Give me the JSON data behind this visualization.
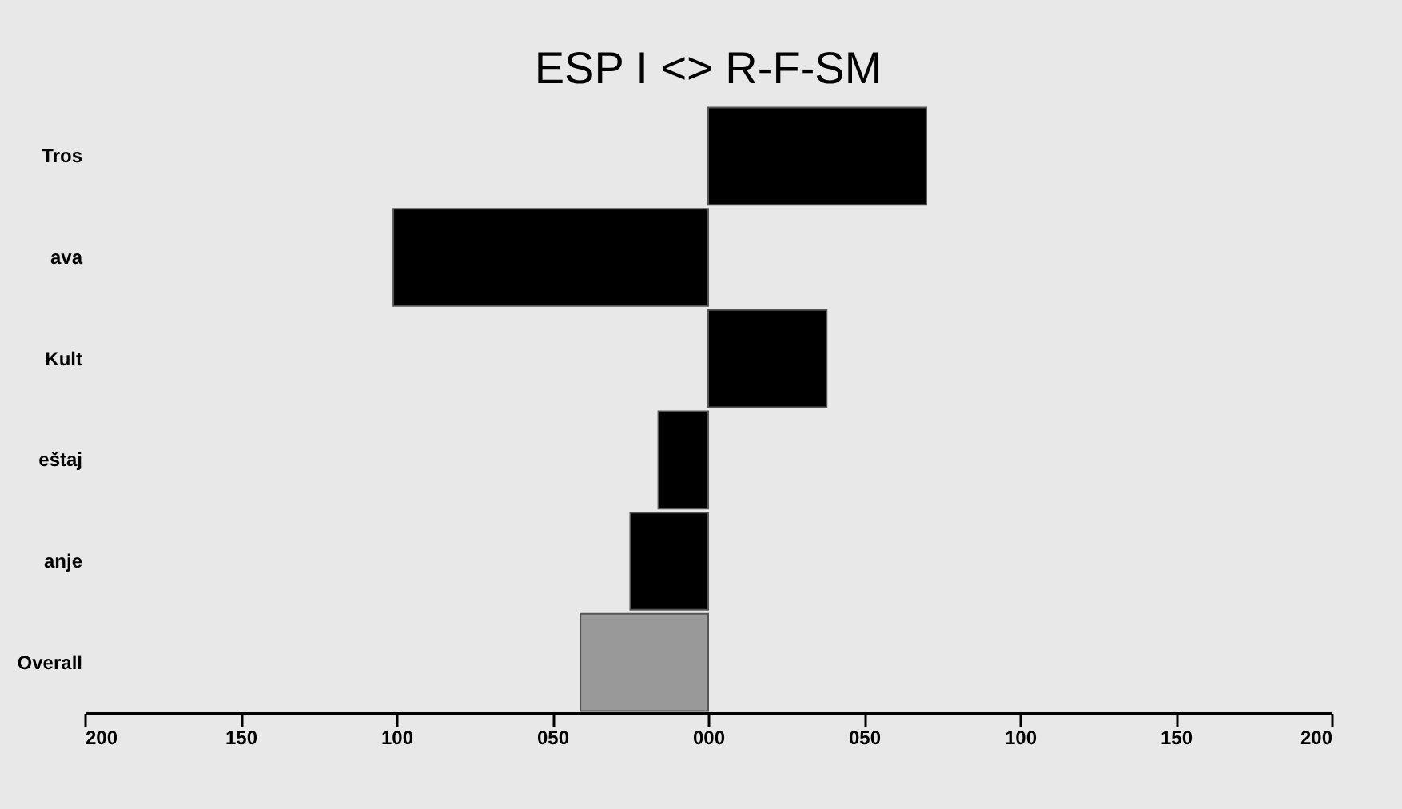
{
  "chart_data": {
    "type": "bar",
    "orientation": "horizontal",
    "title": "ESP I <> R-F-SM",
    "categories": [
      "Tros",
      "ava",
      "Kult",
      "eštaj",
      "anje",
      "Overall"
    ],
    "values": [
      70,
      -101,
      38,
      -16,
      -25,
      -41
    ],
    "colors": [
      "#000000",
      "#000000",
      "#000000",
      "#000000",
      "#000000",
      "#999999"
    ],
    "xlim": [
      -200,
      200
    ],
    "xticks": [
      {
        "value": -200,
        "label": "200"
      },
      {
        "value": -150,
        "label": "150"
      },
      {
        "value": -100,
        "label": "100"
      },
      {
        "value": -50,
        "label": "050"
      },
      {
        "value": 0,
        "label": "000"
      },
      {
        "value": 50,
        "label": "050"
      },
      {
        "value": 100,
        "label": "100"
      },
      {
        "value": 150,
        "label": "150"
      },
      {
        "value": 200,
        "label": "200"
      }
    ],
    "grid": false,
    "legend": false
  }
}
